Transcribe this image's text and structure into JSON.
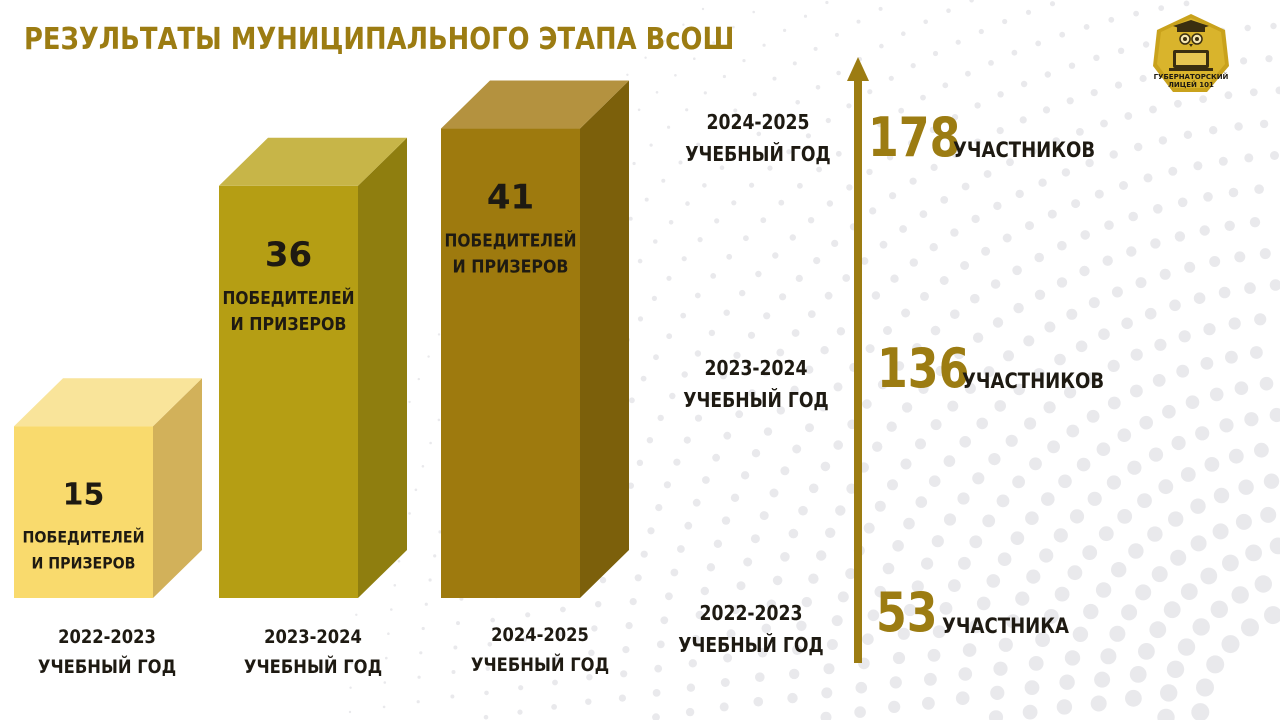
{
  "title": "РЕЗУЛЬТАТЫ МУНИЦИПАЛЬНОГО ЭТАПА ВсОШ",
  "logo": {
    "line1": "ГУБЕРНАТОРСКИЙ",
    "line2": "ЛИЦЕЙ 101",
    "icon": "owl-graduate-laptop-icon"
  },
  "colors": {
    "accent": "#9c7c12",
    "bar1_front": "#f9da6d",
    "bar2_front": "#b59e14",
    "bar3_front": "#9e7a0e"
  },
  "chart_data": [
    {
      "type": "bar",
      "categories": [
        "2022-2023",
        "2023-2024",
        "2024-2025"
      ],
      "category_sublabel": "УЧЕБНЫЙ ГОД",
      "values": [
        15,
        36,
        41
      ],
      "value_caption_line1": "ПОБЕДИТЕЛЕЙ",
      "value_caption_line2": "И ПРИЗЕРОВ",
      "style": "3d"
    },
    {
      "type": "line",
      "x": [
        "2022-2023",
        "2023-2024",
        "2024-2025"
      ],
      "x_sublabel": "УЧЕБНЫЙ ГОД",
      "values": [
        53,
        136,
        178
      ],
      "value_units": [
        "УЧАСТНИКА",
        "УЧАСТНИКОВ",
        "УЧАСТНИКОВ"
      ],
      "orientation": "vertical-arrow"
    }
  ]
}
